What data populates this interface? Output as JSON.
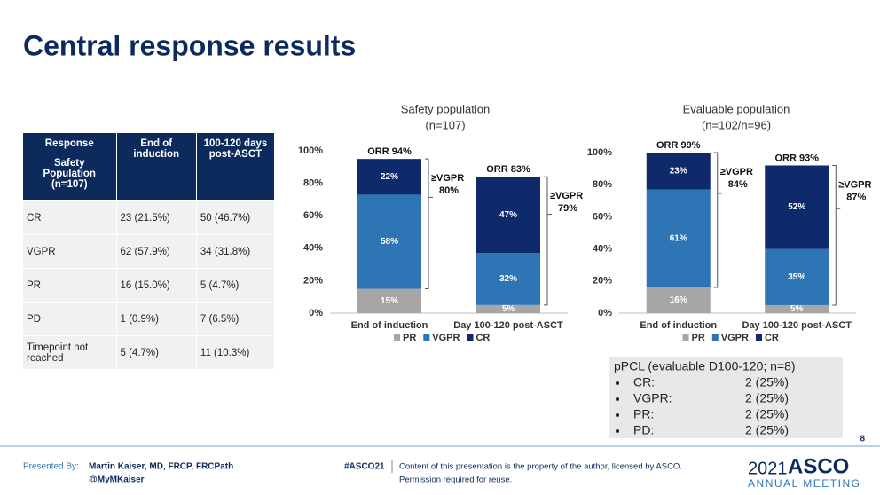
{
  "title": "Central response results",
  "table": {
    "header": [
      "Response",
      "End of induction",
      "100-120 days post-ASCT"
    ],
    "header_sub": "Safety Population (n=107)",
    "rows": [
      [
        "CR",
        "23 (21.5%)",
        "50 (46.7%)"
      ],
      [
        "VGPR",
        "62 (57.9%)",
        "34 (31.8%)"
      ],
      [
        "PR",
        "16 (15.0%)",
        "5 (4.7%)"
      ],
      [
        "PD",
        "1 (0.9%)",
        "7 (6.5%)"
      ],
      [
        "Timepoint not reached",
        "5 (4.7%)",
        "11 (10.3%)"
      ]
    ]
  },
  "chart_data": [
    {
      "type": "bar",
      "stacked": true,
      "title": "Safety population",
      "subtitle": "(n=107)",
      "categories": [
        "End of induction",
        "Day 100-120 post-ASCT"
      ],
      "series": [
        {
          "name": "PR",
          "color": "#a6a6a6",
          "values": [
            15,
            5
          ],
          "value_labels": [
            "15%",
            "5%"
          ]
        },
        {
          "name": "VGPR",
          "color": "#2e75b6",
          "values": [
            58,
            32
          ],
          "value_labels": [
            "58%",
            "32%"
          ]
        },
        {
          "name": "CR",
          "color": "#0e2a6a",
          "values": [
            22,
            47
          ],
          "value_labels": [
            "22%",
            "47%"
          ]
        }
      ],
      "ylim": [
        0,
        100
      ],
      "yticks": [
        {
          "value": 0,
          "label": "0%"
        },
        {
          "value": 20,
          "label": "20%"
        },
        {
          "value": 40,
          "label": "40%"
        },
        {
          "value": 60,
          "label": "60%"
        },
        {
          "value": 80,
          "label": "80%"
        },
        {
          "value": 100,
          "label": "100%"
        }
      ],
      "orr_labels": [
        "ORR 94%",
        "ORR 83%"
      ],
      "vgpr_labels": [
        [
          "≥VGPR",
          "80%"
        ],
        [
          "≥VGPR",
          "79%"
        ]
      ]
    },
    {
      "type": "bar",
      "stacked": true,
      "title": "Evaluable population",
      "subtitle": "(n=102/n=96)",
      "categories": [
        "End of induction",
        "Day 100-120 post-ASCT"
      ],
      "series": [
        {
          "name": "PR",
          "color": "#a6a6a6",
          "values": [
            16,
            5
          ],
          "value_labels": [
            "16%",
            "5%"
          ]
        },
        {
          "name": "VGPR",
          "color": "#2e75b6",
          "values": [
            61,
            35
          ],
          "value_labels": [
            "61%",
            "35%"
          ]
        },
        {
          "name": "CR",
          "color": "#0e2a6a",
          "values": [
            23,
            52
          ],
          "value_labels": [
            "23%",
            "52%"
          ]
        }
      ],
      "ylim": [
        0,
        100
      ],
      "yticks": [
        {
          "value": 0,
          "label": "0%"
        },
        {
          "value": 20,
          "label": "20%"
        },
        {
          "value": 40,
          "label": "40%"
        },
        {
          "value": 60,
          "label": "60%"
        },
        {
          "value": 80,
          "label": "80%"
        },
        {
          "value": 100,
          "label": "100%"
        }
      ],
      "orr_labels": [
        "ORR 99%",
        "ORR 93%"
      ],
      "vgpr_labels": [
        [
          "≥VGPR",
          "84%"
        ],
        [
          "≥VGPR",
          "87%"
        ]
      ]
    }
  ],
  "ppcl": {
    "title": "pPCL (evaluable D100-120; n=8)",
    "items": [
      [
        "CR:",
        "2 (25%)"
      ],
      [
        "VGPR:",
        "2 (25%)"
      ],
      [
        "PR:",
        "2 (25%)"
      ],
      [
        "PD:",
        "2 (25%)"
      ]
    ]
  },
  "page_number": "8",
  "footer": {
    "presented_by": "Presented By:",
    "presenter": "Martin Kaiser, MD, FRCP, FRCPath",
    "handle": "@MyMKaiser",
    "hashtag": "#ASCO21",
    "notice": [
      "Content of this presentation is the property of the author, licensed by ASCO.",
      "Permission required for reuse."
    ],
    "logo_year": "2021",
    "logo_name": "ASCO",
    "logo_sub": "ANNUAL MEETING"
  }
}
